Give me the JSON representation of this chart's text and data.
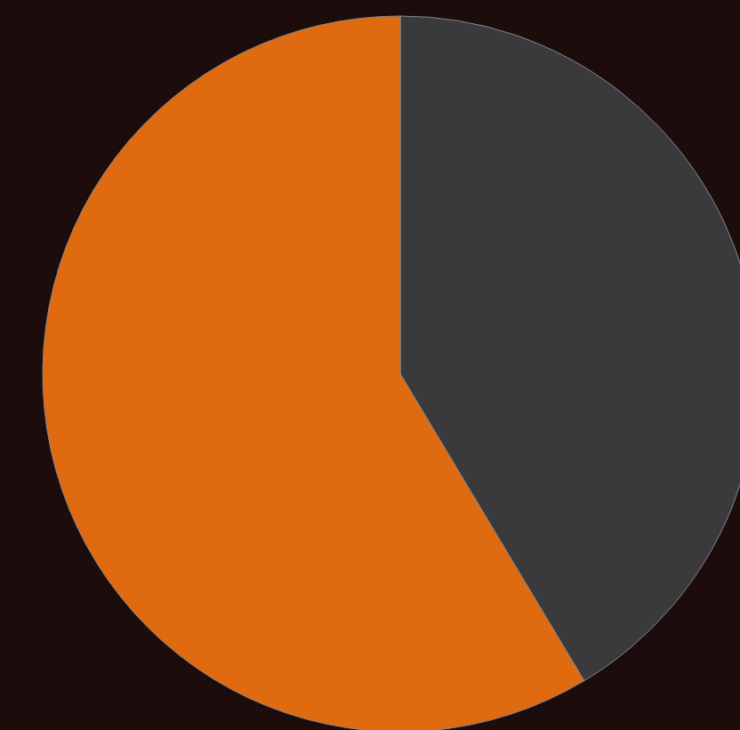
{
  "chart_data": {
    "type": "pie",
    "categories": [
      null,
      null
    ],
    "values": [
      41.4,
      58.6
    ],
    "colors": [
      "#3a3a3c",
      "#e06a10"
    ]
  }
}
